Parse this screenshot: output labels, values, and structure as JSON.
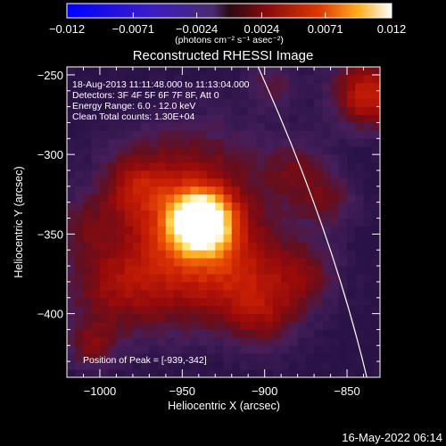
{
  "chart_data": {
    "type": "heatmap",
    "title": "Reconstructed RHESSI Image",
    "xlabel": "Heliocentric X (arcsec)",
    "ylabel": "Heliocentric Y (arcsec)",
    "xlim": [
      -1020,
      -830
    ],
    "ylim": [
      -440,
      -245
    ],
    "x_ticks": [
      -1000,
      -950,
      -900,
      -850
    ],
    "y_ticks": [
      -250,
      -300,
      -350,
      -400
    ],
    "x_tick_labels": [
      "−1000",
      "−950",
      "−900",
      "−850"
    ],
    "y_tick_labels": [
      "−250",
      "−300",
      "−350",
      "−400"
    ],
    "info_lines": [
      "18-Aug-2013 11:11:48.000 to 11:13:04.000",
      "Detectors: 3F 4F 5F 6F 7F 8F, Att 0",
      "Energy Range: 6.0 - 12.0 keV",
      "Clean     Total counts: 1.30E+04"
    ],
    "peak_annotation": "Position of Peak = [-939,-342]",
    "peak": [
      -939,
      -342
    ],
    "colorbar": {
      "range": [
        -0.012,
        0.012
      ],
      "ticks": [
        -0.012,
        -0.0071,
        -0.0024,
        0.0024,
        0.0071,
        0.012
      ],
      "tick_labels": [
        "−0.012",
        "−0.0071",
        "−0.0024",
        "0.0024",
        "0.0071",
        "0.012"
      ],
      "unit": "(photons cm⁻² s⁻¹ asec⁻²)",
      "colormap": "blue-purple-red-yellow-white"
    },
    "limb_curve": [
      [
        -904,
        -245
      ],
      [
        -860,
        -345
      ],
      [
        -838,
        -440
      ]
    ],
    "limb_color": "#ffffff",
    "sources": [
      {
        "x": -939,
        "y": -342,
        "sigma": 13,
        "amp": 1.0
      },
      {
        "x": -945,
        "y": -330,
        "sigma": 32,
        "amp": 0.38
      },
      {
        "x": -978,
        "y": -320,
        "sigma": 14,
        "amp": 0.25
      },
      {
        "x": -995,
        "y": -385,
        "sigma": 20,
        "amp": 0.22
      },
      {
        "x": -960,
        "y": -375,
        "sigma": 26,
        "amp": 0.28
      },
      {
        "x": -915,
        "y": -375,
        "sigma": 22,
        "amp": 0.3
      },
      {
        "x": -900,
        "y": -400,
        "sigma": 16,
        "amp": 0.24
      },
      {
        "x": -875,
        "y": -375,
        "sigma": 14,
        "amp": 0.22
      },
      {
        "x": -880,
        "y": -310,
        "sigma": 14,
        "amp": 0.2
      },
      {
        "x": -862,
        "y": -330,
        "sigma": 12,
        "amp": 0.2
      },
      {
        "x": -838,
        "y": -262,
        "sigma": 14,
        "amp": 0.5
      },
      {
        "x": -1010,
        "y": -345,
        "sigma": 14,
        "amp": 0.15
      },
      {
        "x": -895,
        "y": -255,
        "sigma": 12,
        "amp": 0.16
      },
      {
        "x": -1005,
        "y": -420,
        "sigma": 10,
        "amp": 0.25
      }
    ]
  },
  "timestamp": "16-May-2022 06:14"
}
